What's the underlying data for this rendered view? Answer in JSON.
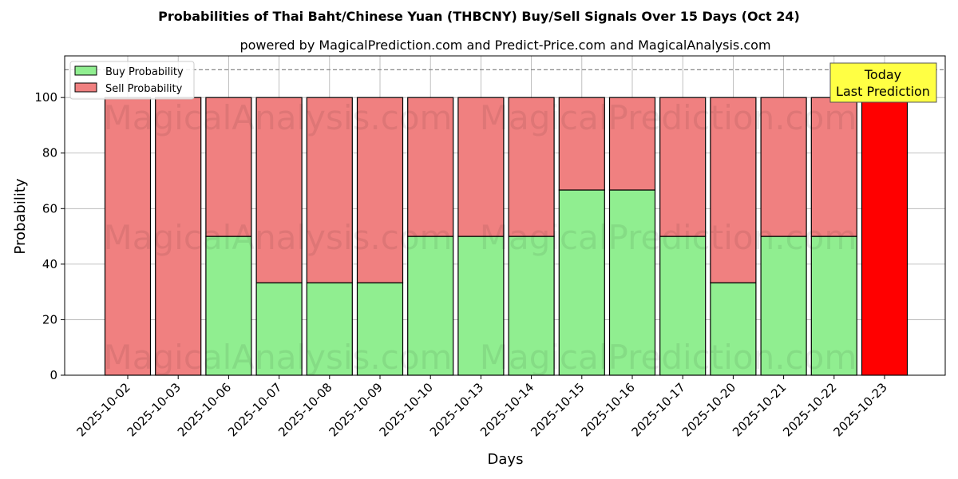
{
  "chart_data": {
    "type": "bar",
    "stacked": true,
    "title": "Probabilities of Thai Baht/Chinese Yuan (THBCNY) Buy/Sell Signals Over 15 Days (Oct 24)",
    "subtitle": "powered by MagicalPrediction.com and Predict-Price.com and MagicalAnalysis.com",
    "xlabel": "Days",
    "ylabel": "Probability",
    "ylim": [
      0,
      115
    ],
    "yticks": [
      0,
      20,
      40,
      60,
      80,
      100
    ],
    "grid": true,
    "legend_position": "top-left",
    "reference_line": 110,
    "categories": [
      "2025-10-02",
      "2025-10-03",
      "2025-10-06",
      "2025-10-07",
      "2025-10-08",
      "2025-10-09",
      "2025-10-10",
      "2025-10-13",
      "2025-10-14",
      "2025-10-15",
      "2025-10-16",
      "2025-10-17",
      "2025-10-20",
      "2025-10-21",
      "2025-10-22",
      "2025-10-23"
    ],
    "series": [
      {
        "name": "Buy Probability",
        "color": "#90ee90",
        "values": [
          0,
          0,
          50,
          33.3,
          33.3,
          33.3,
          50,
          50,
          50,
          66.7,
          66.7,
          50,
          33.3,
          50,
          50,
          0
        ]
      },
      {
        "name": "Sell Probability",
        "color": "#f08080",
        "values": [
          100,
          100,
          50,
          66.7,
          66.7,
          66.7,
          50,
          50,
          50,
          33.3,
          33.3,
          50,
          66.7,
          50,
          50,
          100
        ]
      }
    ],
    "highlight": {
      "index": 15,
      "color": "#ff0000"
    },
    "annotation": {
      "lines": [
        "Today",
        "Last Prediction"
      ],
      "color": "#ffff44"
    },
    "watermarks": [
      "MagicalAnalysis.com",
      "MagicalPrediction.com"
    ]
  }
}
